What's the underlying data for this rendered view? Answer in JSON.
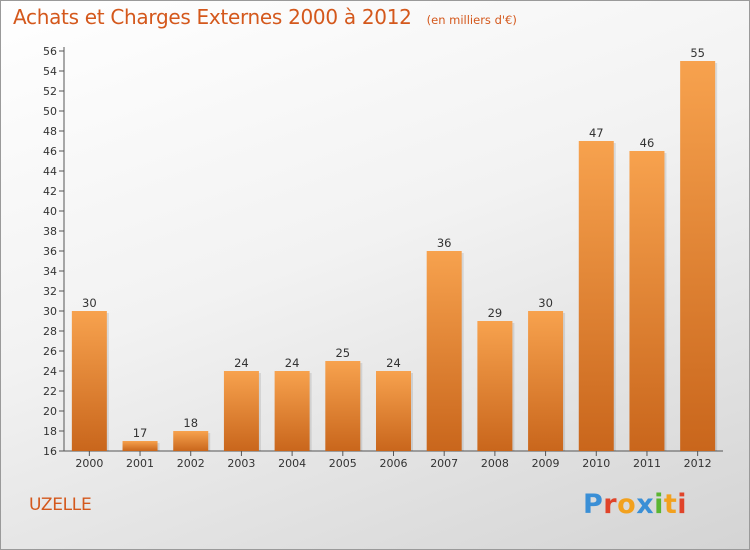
{
  "header": {
    "title": "Achats et Charges Externes 2000 à 2012",
    "unit": "(en milliers d'€)"
  },
  "location": "UZELLE",
  "logo": {
    "letters": [
      "P",
      "r",
      "o",
      "x",
      "i",
      "t",
      "i"
    ],
    "colors": [
      "#3a8fd6",
      "#e0442a",
      "#f2a11e",
      "#3a8fd6",
      "#5bb531",
      "#f2a11e",
      "#e0442a"
    ]
  },
  "colors": {
    "bar_light": "#f7a24e",
    "bar_dark": "#c9661c",
    "accent_text": "#d4581c",
    "axis": "#555555"
  },
  "chart_data": {
    "type": "bar",
    "categories": [
      "2000",
      "2001",
      "2002",
      "2003",
      "2004",
      "2005",
      "2006",
      "2007",
      "2008",
      "2009",
      "2010",
      "2011",
      "2012"
    ],
    "values": [
      30,
      17,
      18,
      24,
      24,
      25,
      24,
      36,
      29,
      30,
      47,
      46,
      55
    ],
    "title": "Achats et Charges Externes 2000 à 2012",
    "subtitle": "(en milliers d'€)",
    "xlabel": "",
    "ylabel": "",
    "ylim": [
      16,
      56
    ],
    "ytick_step": 2,
    "grid": false,
    "legend": "none"
  }
}
